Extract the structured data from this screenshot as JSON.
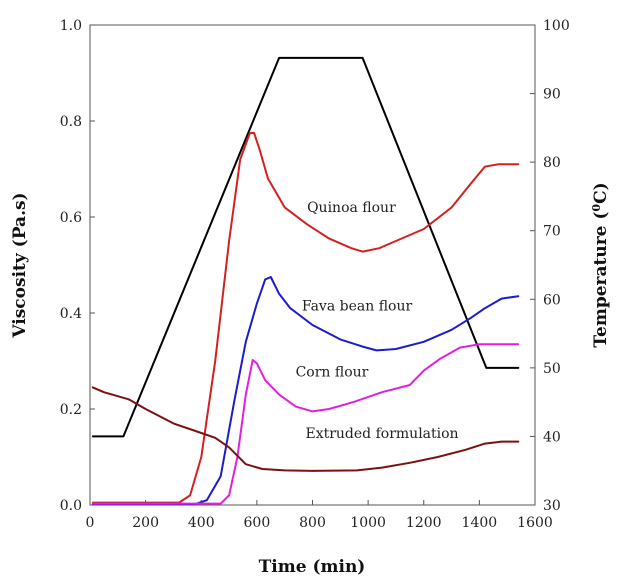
{
  "chart_data": {
    "type": "line",
    "title": "",
    "xlabel": "Time (min)",
    "ylabel": "Viscosity (Pa.s)",
    "y2label_main": "Temperature (",
    "y2label_sup": "0",
    "y2label_end": "C)",
    "xlim": [
      0,
      1600
    ],
    "ylim": [
      0,
      1.0
    ],
    "y2lim": [
      30,
      100
    ],
    "xticks": [
      0,
      200,
      400,
      600,
      800,
      1000,
      1200,
      1400,
      1600
    ],
    "yticks": [
      0.0,
      0.2,
      0.4,
      0.6,
      0.8,
      1.0
    ],
    "yticklabels": [
      "0.0",
      "0.2",
      "0.4",
      "0.6",
      "0.8",
      "1.0"
    ],
    "y2ticks": [
      30,
      40,
      50,
      60,
      70,
      80,
      90,
      100
    ],
    "annotations": [
      {
        "text": "Quinoa flour",
        "x": 940,
        "y": 0.61
      },
      {
        "text": "Fava bean flour",
        "x": 960,
        "y": 0.405
      },
      {
        "text": "Corn flour",
        "x": 870,
        "y": 0.268
      },
      {
        "text": "Extruded formulation",
        "x": 1050,
        "y": 0.14
      }
    ],
    "series": [
      {
        "axis": "right",
        "color": "#000000",
        "points": [
          [
            10,
            40
          ],
          [
            120,
            40
          ],
          [
            680,
            95.2
          ],
          [
            980,
            95.2
          ],
          [
            1425,
            50
          ],
          [
            1540,
            50
          ]
        ]
      },
      {
        "axis": "left",
        "color": "#d42020",
        "points": [
          [
            10,
            0.005
          ],
          [
            320,
            0.005
          ],
          [
            360,
            0.02
          ],
          [
            400,
            0.1
          ],
          [
            450,
            0.3
          ],
          [
            500,
            0.55
          ],
          [
            540,
            0.72
          ],
          [
            575,
            0.775
          ],
          [
            590,
            0.775
          ],
          [
            610,
            0.74
          ],
          [
            640,
            0.68
          ],
          [
            700,
            0.62
          ],
          [
            780,
            0.585
          ],
          [
            860,
            0.555
          ],
          [
            940,
            0.535
          ],
          [
            980,
            0.528
          ],
          [
            1040,
            0.535
          ],
          [
            1100,
            0.55
          ],
          [
            1200,
            0.575
          ],
          [
            1300,
            0.62
          ],
          [
            1370,
            0.67
          ],
          [
            1420,
            0.705
          ],
          [
            1470,
            0.71
          ],
          [
            1540,
            0.71
          ]
        ]
      },
      {
        "axis": "left",
        "color": "#1c1ccf",
        "points": [
          [
            10,
            0.002
          ],
          [
            380,
            0.002
          ],
          [
            420,
            0.01
          ],
          [
            470,
            0.06
          ],
          [
            520,
            0.22
          ],
          [
            560,
            0.34
          ],
          [
            600,
            0.42
          ],
          [
            630,
            0.47
          ],
          [
            650,
            0.475
          ],
          [
            680,
            0.44
          ],
          [
            720,
            0.41
          ],
          [
            800,
            0.375
          ],
          [
            900,
            0.345
          ],
          [
            980,
            0.33
          ],
          [
            1030,
            0.322
          ],
          [
            1100,
            0.325
          ],
          [
            1200,
            0.34
          ],
          [
            1300,
            0.365
          ],
          [
            1370,
            0.39
          ],
          [
            1420,
            0.41
          ],
          [
            1480,
            0.43
          ],
          [
            1540,
            0.435
          ]
        ]
      },
      {
        "axis": "left",
        "color": "#e020e0",
        "points": [
          [
            10,
            0.003
          ],
          [
            470,
            0.003
          ],
          [
            500,
            0.02
          ],
          [
            530,
            0.1
          ],
          [
            560,
            0.23
          ],
          [
            585,
            0.302
          ],
          [
            600,
            0.295
          ],
          [
            630,
            0.26
          ],
          [
            680,
            0.23
          ],
          [
            740,
            0.205
          ],
          [
            800,
            0.195
          ],
          [
            860,
            0.2
          ],
          [
            950,
            0.215
          ],
          [
            1050,
            0.235
          ],
          [
            1150,
            0.25
          ],
          [
            1200,
            0.28
          ],
          [
            1260,
            0.305
          ],
          [
            1330,
            0.328
          ],
          [
            1400,
            0.335
          ],
          [
            1540,
            0.335
          ]
        ]
      },
      {
        "axis": "left",
        "color": "#7a1010",
        "points": [
          [
            10,
            0.245
          ],
          [
            50,
            0.235
          ],
          [
            140,
            0.22
          ],
          [
            200,
            0.2
          ],
          [
            300,
            0.17
          ],
          [
            400,
            0.15
          ],
          [
            450,
            0.14
          ],
          [
            500,
            0.12
          ],
          [
            560,
            0.085
          ],
          [
            620,
            0.075
          ],
          [
            700,
            0.072
          ],
          [
            800,
            0.071
          ],
          [
            960,
            0.072
          ],
          [
            1050,
            0.078
          ],
          [
            1150,
            0.088
          ],
          [
            1250,
            0.1
          ],
          [
            1350,
            0.115
          ],
          [
            1420,
            0.128
          ],
          [
            1480,
            0.132
          ],
          [
            1540,
            0.132
          ]
        ]
      }
    ]
  }
}
